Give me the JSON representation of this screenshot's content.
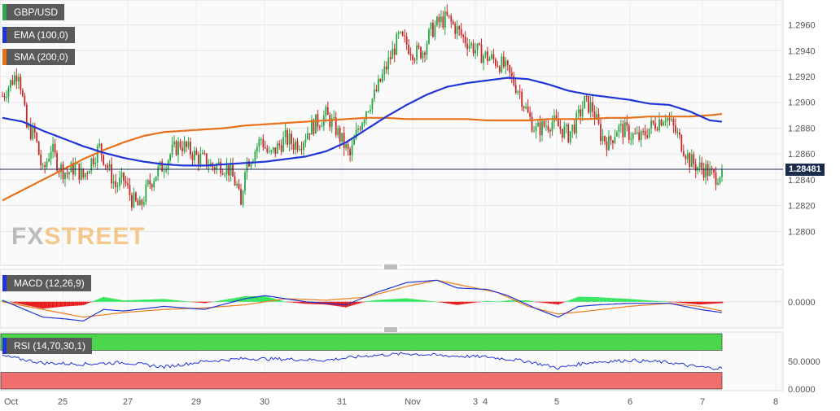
{
  "labels": {
    "symbol": "GBP/USD",
    "ema": "EMA (100,0)",
    "sma": "SMA (200,0)",
    "macd": "MACD (12,26,9)",
    "rsi": "RSI (14,70,30,1)",
    "price": "1.28481"
  },
  "logo": {
    "part1": "FX",
    "part2": "STREET"
  },
  "colors": {
    "up": "#27a844",
    "down": "#c62828",
    "ema": "#1f35d6",
    "sma": "#e8701a",
    "macd_line": "#1f35d6",
    "signal_line": "#f07c1c",
    "hist_pos": "#2ee65a",
    "hist_neg": "#e81818",
    "rsi_line": "#1f35d6",
    "rsi_over": "#4cd64c",
    "rsi_under": "#f07070",
    "price_line": "#1a2b4c"
  },
  "chart_data": [
    {
      "type": "candlestick",
      "title": "GBP/USD",
      "ylim": [
        1.2775,
        1.2978
      ],
      "y_ticks": [
        "1.2960",
        "1.2940",
        "1.2920",
        "1.2900",
        "1.2880",
        "1.2860",
        "1.2840",
        "1.2820",
        "1.2800"
      ],
      "x_ticks": [
        "Oct",
        "25",
        "27",
        "29",
        "30",
        "31",
        "Nov",
        "3",
        "4",
        "5",
        "6",
        "7",
        "8"
      ],
      "last_price": 1.28481,
      "close_anchors": [
        [
          0,
          1.2905
        ],
        [
          4,
          1.2915
        ],
        [
          8,
          1.2925
        ],
        [
          12,
          1.288
        ],
        [
          16,
          1.2875
        ],
        [
          20,
          1.2845
        ],
        [
          24,
          1.2865
        ],
        [
          28,
          1.285
        ],
        [
          32,
          1.2845
        ],
        [
          36,
          1.285
        ],
        [
          40,
          1.2842
        ],
        [
          44,
          1.2855
        ],
        [
          48,
          1.2865
        ],
        [
          52,
          1.285
        ],
        [
          56,
          1.2835
        ],
        [
          60,
          1.284
        ],
        [
          64,
          1.2825
        ],
        [
          68,
          1.2818
        ],
        [
          72,
          1.2835
        ],
        [
          76,
          1.2845
        ],
        [
          80,
          1.2852
        ],
        [
          84,
          1.2862
        ],
        [
          88,
          1.2868
        ],
        [
          92,
          1.2863
        ],
        [
          96,
          1.2858
        ],
        [
          100,
          1.2855
        ],
        [
          104,
          1.285
        ],
        [
          108,
          1.2852
        ],
        [
          112,
          1.2848
        ],
        [
          116,
          1.2835
        ],
        [
          118,
          1.2818
        ],
        [
          120,
          1.2852
        ],
        [
          124,
          1.286
        ],
        [
          128,
          1.2872
        ],
        [
          132,
          1.2858
        ],
        [
          136,
          1.2865
        ],
        [
          140,
          1.2872
        ],
        [
          144,
          1.2868
        ],
        [
          148,
          1.287
        ],
        [
          152,
          1.288
        ],
        [
          156,
          1.2885
        ],
        [
          160,
          1.289
        ],
        [
          164,
          1.2882
        ],
        [
          168,
          1.287
        ],
        [
          172,
          1.2858
        ],
        [
          176,
          1.288
        ],
        [
          180,
          1.2895
        ],
        [
          184,
          1.2905
        ],
        [
          188,
          1.292
        ],
        [
          192,
          1.2935
        ],
        [
          196,
          1.295
        ],
        [
          200,
          1.2945
        ],
        [
          204,
          1.2938
        ],
        [
          208,
          1.294
        ],
        [
          212,
          1.2955
        ],
        [
          216,
          1.2962
        ],
        [
          220,
          1.2965
        ],
        [
          224,
          1.2958
        ],
        [
          228,
          1.295
        ],
        [
          232,
          1.2944
        ],
        [
          236,
          1.2938
        ],
        [
          240,
          1.2935
        ],
        [
          244,
          1.2932
        ],
        [
          248,
          1.2928
        ],
        [
          252,
          1.2918
        ],
        [
          256,
          1.2908
        ],
        [
          260,
          1.289
        ],
        [
          264,
          1.2878
        ],
        [
          268,
          1.2882
        ],
        [
          272,
          1.2885
        ],
        [
          276,
          1.288
        ],
        [
          280,
          1.2875
        ],
        [
          284,
          1.2885
        ],
        [
          288,
          1.29
        ],
        [
          292,
          1.2895
        ],
        [
          296,
          1.2875
        ],
        [
          300,
          1.2868
        ],
        [
          304,
          1.288
        ],
        [
          308,
          1.2878
        ],
        [
          312,
          1.2874
        ],
        [
          316,
          1.2872
        ],
        [
          320,
          1.288
        ],
        [
          324,
          1.2885
        ],
        [
          328,
          1.289
        ],
        [
          332,
          1.288
        ],
        [
          336,
          1.2868
        ],
        [
          340,
          1.2855
        ],
        [
          344,
          1.285
        ],
        [
          348,
          1.2848
        ],
        [
          352,
          1.2842
        ],
        [
          354,
          1.2844
        ],
        [
          356,
          1.2848
        ]
      ],
      "ema_anchors": [
        [
          0,
          1.2888
        ],
        [
          10,
          1.2885
        ],
        [
          20,
          1.2878
        ],
        [
          30,
          1.2872
        ],
        [
          40,
          1.2866
        ],
        [
          50,
          1.2861
        ],
        [
          60,
          1.2857
        ],
        [
          70,
          1.2854
        ],
        [
          80,
          1.2852
        ],
        [
          90,
          1.2851
        ],
        [
          100,
          1.2851
        ],
        [
          110,
          1.2852
        ],
        [
          120,
          1.2853
        ],
        [
          130,
          1.2854
        ],
        [
          140,
          1.2856
        ],
        [
          150,
          1.2858
        ],
        [
          160,
          1.2862
        ],
        [
          170,
          1.2869
        ],
        [
          180,
          1.2879
        ],
        [
          190,
          1.2889
        ],
        [
          200,
          1.2898
        ],
        [
          210,
          1.2906
        ],
        [
          220,
          1.2912
        ],
        [
          230,
          1.2915
        ],
        [
          240,
          1.2917
        ],
        [
          250,
          1.2919
        ],
        [
          260,
          1.2918
        ],
        [
          270,
          1.2914
        ],
        [
          280,
          1.2909
        ],
        [
          290,
          1.2906
        ],
        [
          300,
          1.2904
        ],
        [
          310,
          1.2902
        ],
        [
          320,
          1.2899
        ],
        [
          330,
          1.2898
        ],
        [
          340,
          1.2893
        ],
        [
          350,
          1.2886
        ],
        [
          356,
          1.2885
        ]
      ],
      "sma_anchors": [
        [
          0,
          1.2824
        ],
        [
          10,
          1.2832
        ],
        [
          20,
          1.284
        ],
        [
          30,
          1.2848
        ],
        [
          40,
          1.2856
        ],
        [
          50,
          1.2863
        ],
        [
          60,
          1.2869
        ],
        [
          70,
          1.2874
        ],
        [
          80,
          1.2877
        ],
        [
          90,
          1.2878
        ],
        [
          100,
          1.2879
        ],
        [
          110,
          1.288
        ],
        [
          120,
          1.2882
        ],
        [
          130,
          1.2883
        ],
        [
          140,
          1.2884
        ],
        [
          150,
          1.2885
        ],
        [
          160,
          1.2886
        ],
        [
          170,
          1.2887
        ],
        [
          180,
          1.2888
        ],
        [
          190,
          1.2888
        ],
        [
          200,
          1.2887
        ],
        [
          210,
          1.2887
        ],
        [
          220,
          1.2887
        ],
        [
          230,
          1.2887
        ],
        [
          240,
          1.2886
        ],
        [
          250,
          1.2886
        ],
        [
          260,
          1.2886
        ],
        [
          270,
          1.2887
        ],
        [
          280,
          1.2887
        ],
        [
          290,
          1.2887
        ],
        [
          300,
          1.2888
        ],
        [
          310,
          1.2888
        ],
        [
          320,
          1.2889
        ],
        [
          330,
          1.2889
        ],
        [
          340,
          1.2889
        ],
        [
          350,
          1.289
        ],
        [
          356,
          1.2891
        ]
      ]
    },
    {
      "type": "line",
      "title": "MACD (12,26,9)",
      "y_ticks": [
        "0.0000"
      ],
      "ylim": [
        -0.0032,
        0.004
      ],
      "macd_anchors": [
        [
          0,
          0.0002
        ],
        [
          20,
          -0.002
        ],
        [
          30,
          -0.0022
        ],
        [
          40,
          -0.0025
        ],
        [
          50,
          -0.001
        ],
        [
          60,
          -0.0012
        ],
        [
          80,
          -0.0006
        ],
        [
          100,
          -0.001
        ],
        [
          120,
          0.0004
        ],
        [
          130,
          0.0008
        ],
        [
          150,
          0.0
        ],
        [
          170,
          -0.0004
        ],
        [
          185,
          0.0012
        ],
        [
          200,
          0.0025
        ],
        [
          215,
          0.0028
        ],
        [
          225,
          0.0018
        ],
        [
          240,
          0.0016
        ],
        [
          250,
          0.0008
        ],
        [
          265,
          -0.001
        ],
        [
          275,
          -0.002
        ],
        [
          285,
          -0.0006
        ],
        [
          295,
          -0.0004
        ],
        [
          310,
          -0.0002
        ],
        [
          330,
          -0.0002
        ],
        [
          345,
          -0.001
        ],
        [
          356,
          -0.0014
        ]
      ],
      "signal_anchors": [
        [
          0,
          0.0
        ],
        [
          20,
          -0.001
        ],
        [
          40,
          -0.002
        ],
        [
          60,
          -0.0014
        ],
        [
          80,
          -0.001
        ],
        [
          100,
          -0.0008
        ],
        [
          120,
          -0.0004
        ],
        [
          140,
          0.0004
        ],
        [
          160,
          0.0002
        ],
        [
          180,
          0.0006
        ],
        [
          200,
          0.002
        ],
        [
          215,
          0.0028
        ],
        [
          230,
          0.002
        ],
        [
          245,
          0.0012
        ],
        [
          260,
          -0.0006
        ],
        [
          275,
          -0.0016
        ],
        [
          290,
          -0.0012
        ],
        [
          310,
          -0.0006
        ],
        [
          330,
          -0.0002
        ],
        [
          345,
          -0.0006
        ],
        [
          356,
          -0.0012
        ]
      ]
    },
    {
      "type": "line",
      "title": "RSI (14,70,30,1)",
      "y_ticks": [
        "50.0000",
        "0.0000"
      ],
      "ylim": [
        0,
        100
      ],
      "overbought": 70,
      "oversold": 30,
      "rsi_anchors": [
        [
          0,
          60
        ],
        [
          20,
          47
        ],
        [
          40,
          45
        ],
        [
          60,
          48
        ],
        [
          80,
          40
        ],
        [
          100,
          50
        ],
        [
          120,
          55
        ],
        [
          140,
          54
        ],
        [
          160,
          52
        ],
        [
          180,
          60
        ],
        [
          200,
          64
        ],
        [
          220,
          60
        ],
        [
          240,
          58
        ],
        [
          260,
          50
        ],
        [
          275,
          38
        ],
        [
          290,
          48
        ],
        [
          310,
          52
        ],
        [
          330,
          48
        ],
        [
          340,
          42
        ],
        [
          350,
          38
        ],
        [
          356,
          38
        ]
      ]
    }
  ]
}
